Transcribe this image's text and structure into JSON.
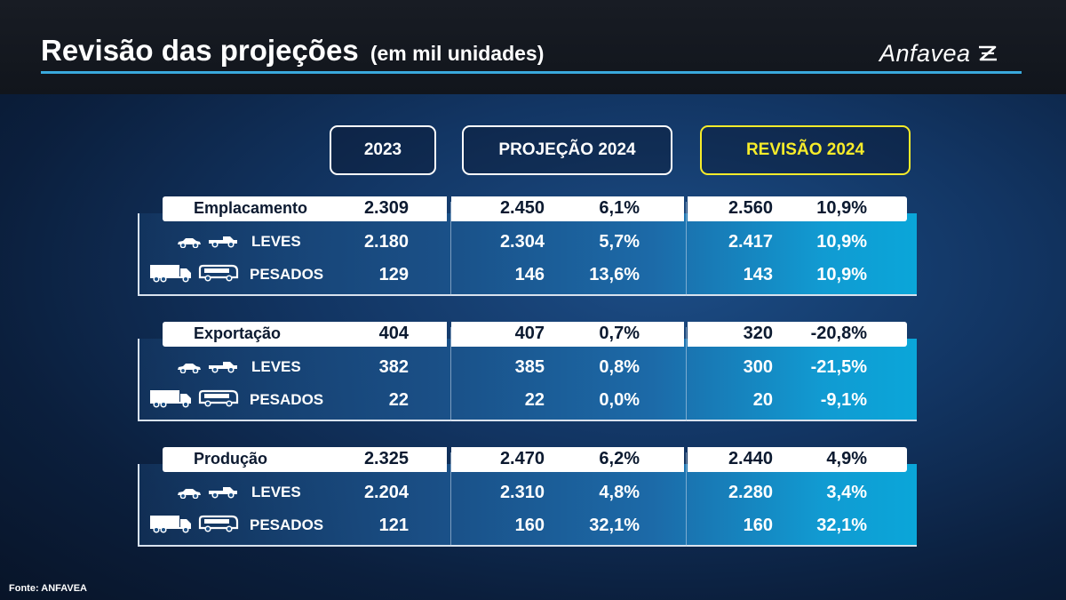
{
  "header": {
    "title": "Revisão das projeções",
    "subtitle": "(em mil unidades)",
    "logo_text": "Anfavea"
  },
  "columns": {
    "c2023": "2023",
    "projecao": "PROJEÇÃO 2024",
    "revisao": "REVISÃO 2024"
  },
  "sections": [
    {
      "label": "Emplacamento",
      "total": {
        "v2023": "2.309",
        "proj": "2.450",
        "proj_pct": "6,1%",
        "rev": "2.560",
        "rev_pct": "10,9%"
      },
      "leves": {
        "label": "LEVES",
        "v2023": "2.180",
        "proj": "2.304",
        "proj_pct": "5,7%",
        "rev": "2.417",
        "rev_pct": "10,9%"
      },
      "pesados": {
        "label": "PESADOS",
        "v2023": "129",
        "proj": "146",
        "proj_pct": "13,6%",
        "rev": "143",
        "rev_pct": "10,9%"
      }
    },
    {
      "label": "Exportação",
      "total": {
        "v2023": "404",
        "proj": "407",
        "proj_pct": "0,7%",
        "rev": "320",
        "rev_pct": "-20,8%"
      },
      "leves": {
        "label": "LEVES",
        "v2023": "382",
        "proj": "385",
        "proj_pct": "0,8%",
        "rev": "300",
        "rev_pct": "-21,5%"
      },
      "pesados": {
        "label": "PESADOS",
        "v2023": "22",
        "proj": "22",
        "proj_pct": "0,0%",
        "rev": "20",
        "rev_pct": "-9,1%"
      }
    },
    {
      "label": "Produção",
      "total": {
        "v2023": "2.325",
        "proj": "2.470",
        "proj_pct": "6,2%",
        "rev": "2.440",
        "rev_pct": "4,9%"
      },
      "leves": {
        "label": "LEVES",
        "v2023": "2.204",
        "proj": "2.310",
        "proj_pct": "4,8%",
        "rev": "2.280",
        "rev_pct": "3,4%"
      },
      "pesados": {
        "label": "PESADOS",
        "v2023": "121",
        "proj": "160",
        "proj_pct": "32,1%",
        "rev": "160",
        "rev_pct": "32,1%"
      }
    }
  ],
  "footer": {
    "source": "Fonte: ANFAVEA"
  },
  "icons": {
    "leves": [
      "car-icon",
      "pickup-icon"
    ],
    "pesados": [
      "truck-icon",
      "bus-icon"
    ],
    "logo": "anfavea-logo-icon"
  }
}
